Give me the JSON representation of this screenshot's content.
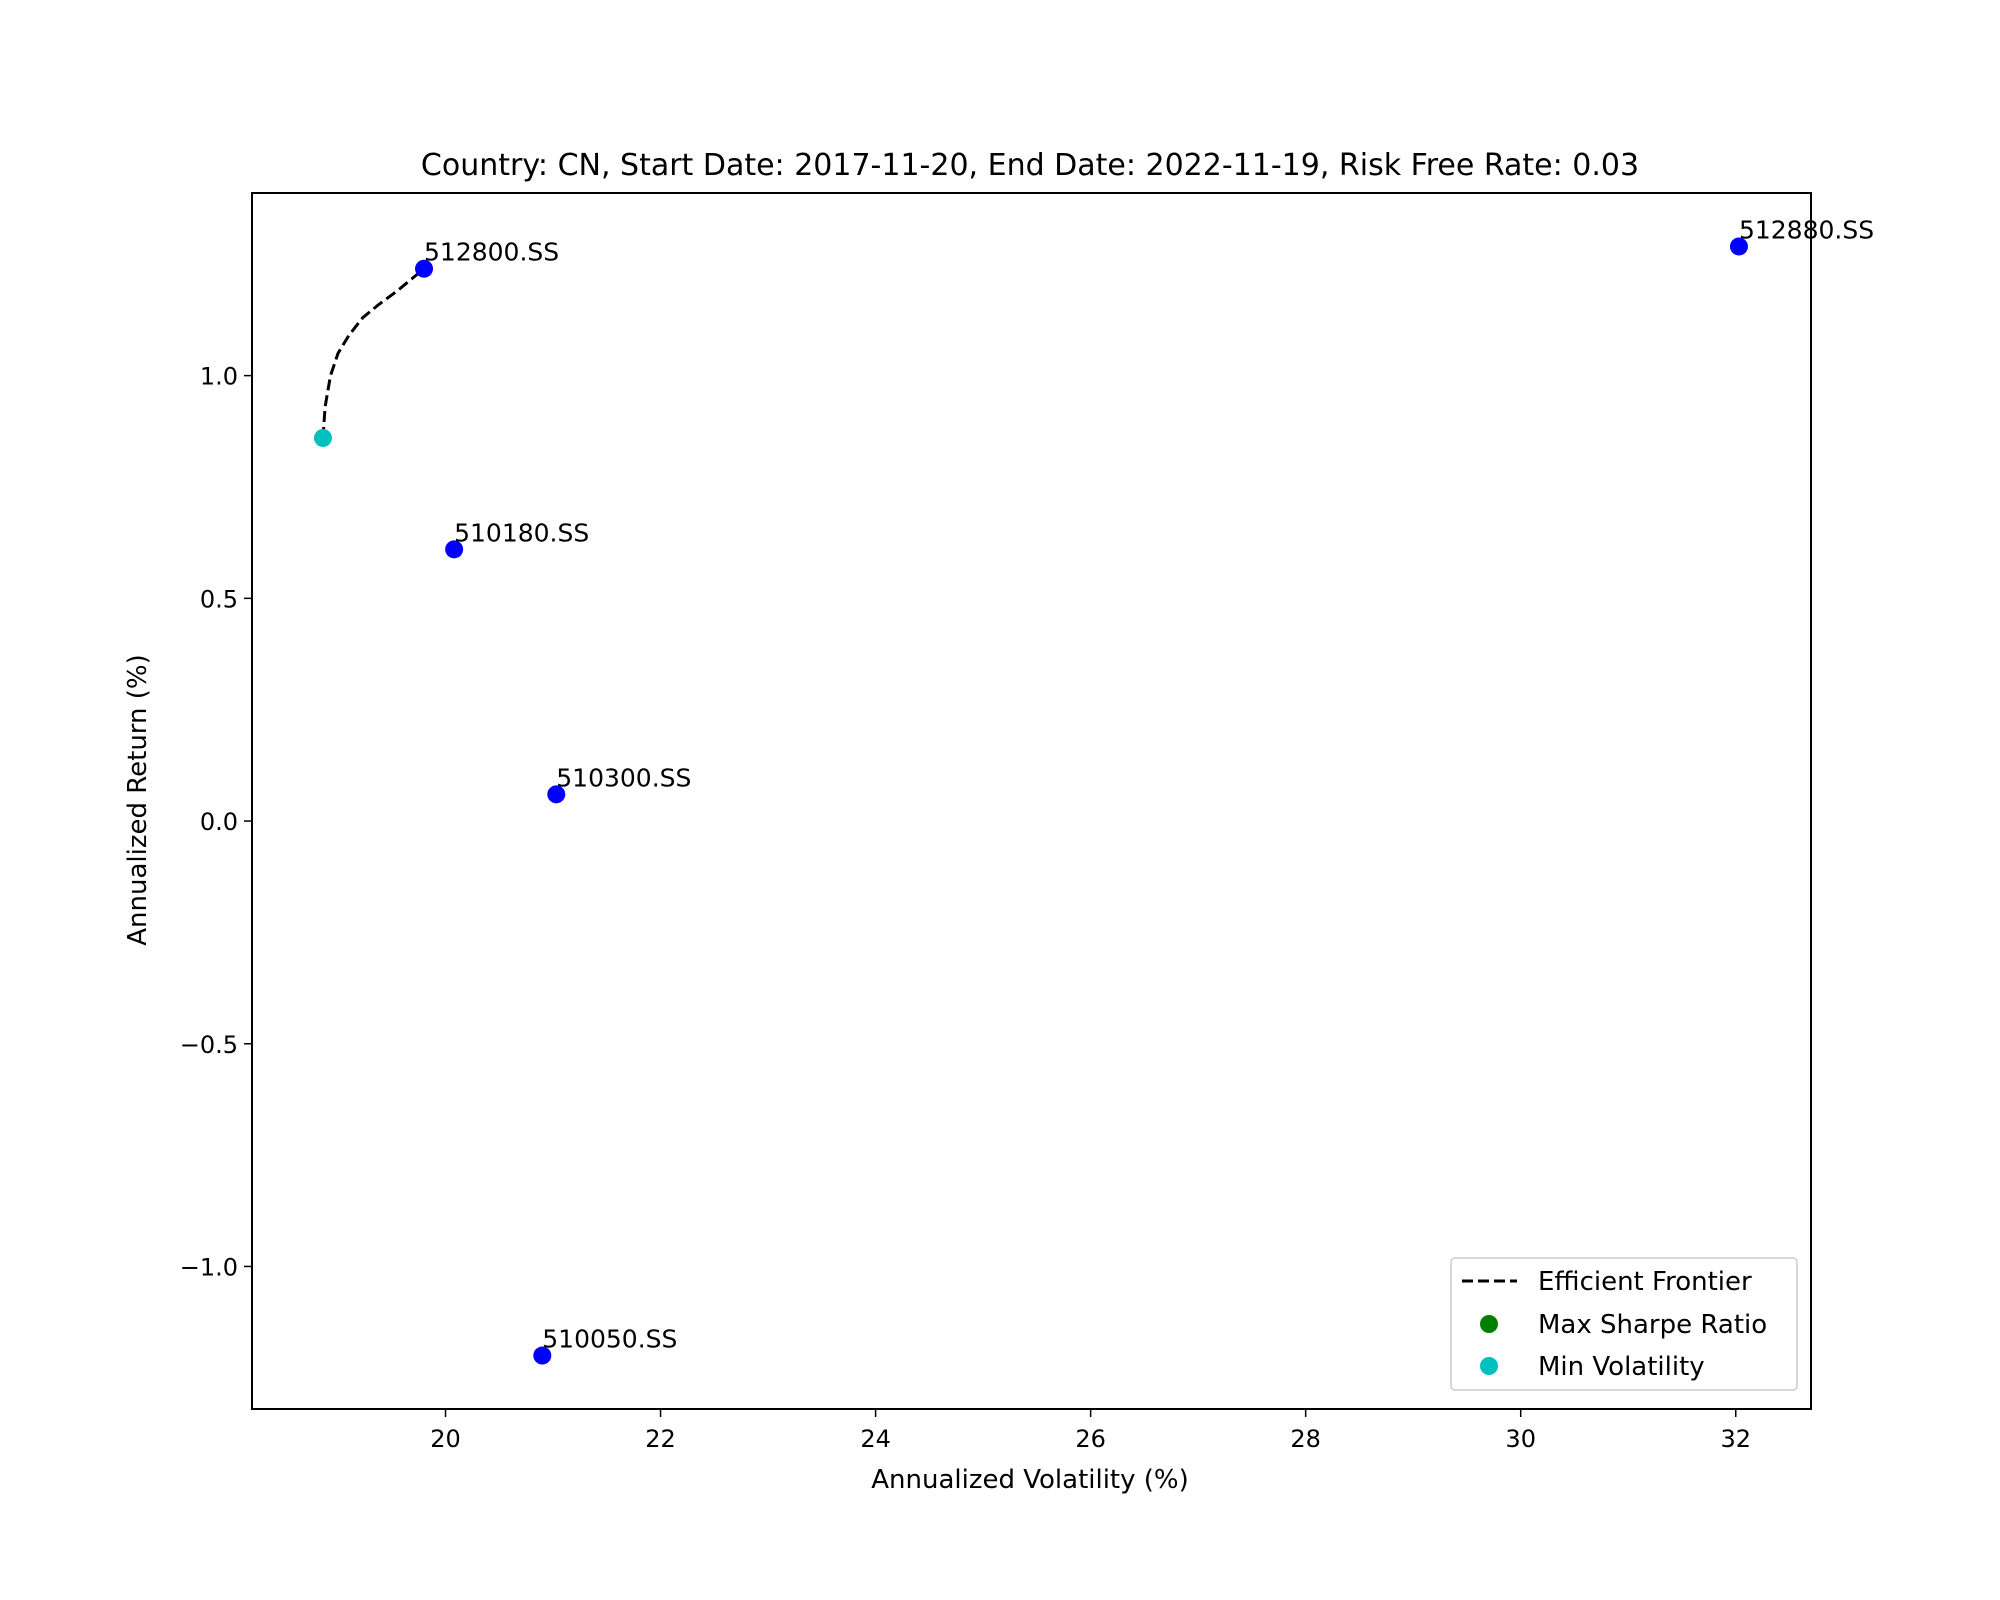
{
  "chart_data": {
    "type": "scatter",
    "title": "Country: CN, Start Date: 2017-11-20, End Date: 2022-11-19, Risk Free Rate: 0.03",
    "xlabel": "Annualized Volatility (%)",
    "ylabel": "Annualized Return (%)",
    "xlim": [
      18.2,
      32.7
    ],
    "ylim": [
      -1.32,
      1.41
    ],
    "xticks": [
      20,
      22,
      24,
      26,
      28,
      30,
      32
    ],
    "xtick_labels": [
      "20",
      "22",
      "24",
      "26",
      "28",
      "30",
      "32"
    ],
    "yticks": [
      -1.0,
      -0.5,
      0.0,
      0.5,
      1.0
    ],
    "ytick_labels": [
      "−1.0",
      "−0.5",
      "0.0",
      "0.5",
      "1.0"
    ],
    "grid": false,
    "legend_position": "bottom-right",
    "assets": [
      {
        "name": "512800.SS",
        "x": 19.8,
        "y": 1.24
      },
      {
        "name": "512880.SS",
        "x": 32.03,
        "y": 1.29
      },
      {
        "name": "510180.SS",
        "x": 20.08,
        "y": 0.61
      },
      {
        "name": "510300.SS",
        "x": 21.03,
        "y": 0.06
      },
      {
        "name": "510050.SS",
        "x": 20.9,
        "y": -1.2
      }
    ],
    "asset_color": "#0000ff",
    "efficient_frontier": {
      "name": "Efficient Frontier",
      "color": "#000000",
      "x": [
        18.86,
        18.88,
        18.93,
        19.0,
        19.1,
        19.23,
        19.38,
        19.55,
        19.8
      ],
      "y": [
        0.86,
        0.93,
        1.0,
        1.05,
        1.09,
        1.13,
        1.16,
        1.19,
        1.24
      ]
    },
    "max_sharpe": {
      "name": "Max Sharpe Ratio",
      "color": "#008000"
    },
    "min_volatility": {
      "name": "Min Volatility",
      "color": "#00bfbf",
      "x": 18.86,
      "y": 0.86
    }
  }
}
